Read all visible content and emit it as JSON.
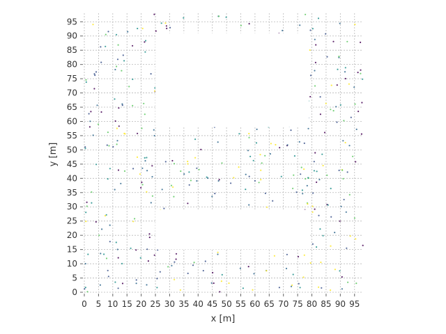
{
  "chart_data": {
    "type": "scatter",
    "title": "",
    "xlabel": "x [m]",
    "ylabel": "y [m]",
    "xlim": [
      0,
      98
    ],
    "ylim": [
      0,
      98
    ],
    "xticks": [
      0,
      5,
      10,
      15,
      20,
      25,
      30,
      35,
      40,
      45,
      50,
      55,
      60,
      65,
      70,
      75,
      80,
      85,
      90,
      95
    ],
    "yticks": [
      0,
      5,
      10,
      15,
      20,
      25,
      30,
      35,
      40,
      45,
      50,
      55,
      60,
      65,
      70,
      75,
      80,
      85,
      90,
      95
    ],
    "grid": true,
    "legend": "none",
    "marker_colors": [
      "#3b528b",
      "#21918c",
      "#5ec962",
      "#fde725",
      "#440154",
      "#31688e"
    ],
    "obstacles": [
      {
        "x0": 25,
        "x1": 79,
        "y0": 58,
        "y1": 91
      },
      {
        "x0": 25,
        "x1": 79,
        "y0": 15,
        "y1": 29
      }
    ],
    "point_count": 520
  }
}
